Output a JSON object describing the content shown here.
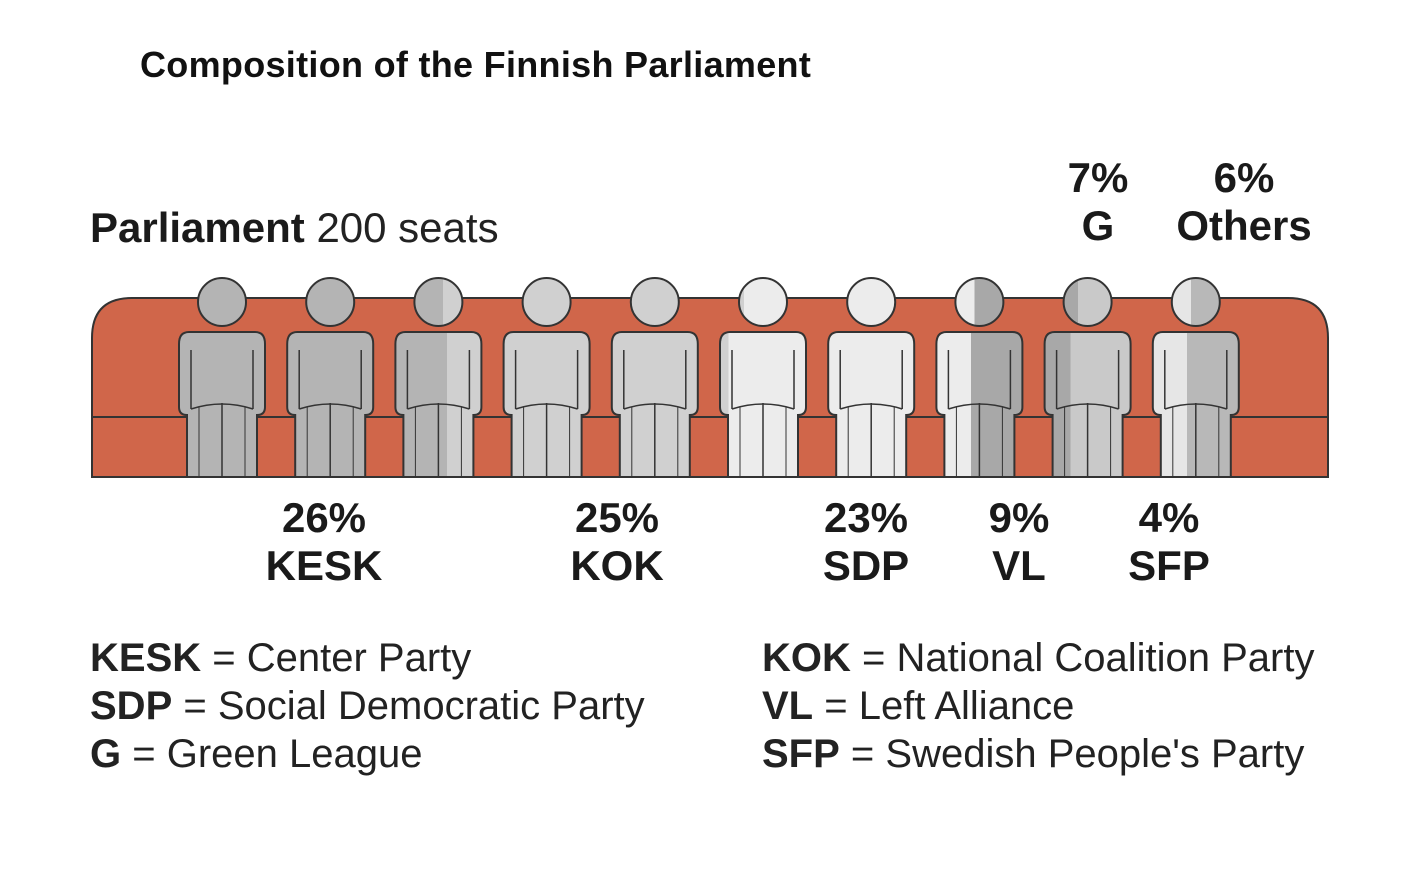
{
  "chart_data": {
    "type": "pictogram",
    "title": "Composition of the Finnish Parliament",
    "subtitle_bold": "Parliament",
    "subtitle_rest": "200 seats",
    "total_seats": 200,
    "parties": [
      {
        "abbr": "KESK",
        "percent": 26,
        "label": "26%",
        "full_name": "Center Party",
        "color": "#b4b4b4",
        "figures": 2.6
      },
      {
        "abbr": "KOK",
        "percent": 25,
        "label": "25%",
        "full_name": "National Coalition Party",
        "color": "#d0d0d0",
        "figures": 2.5
      },
      {
        "abbr": "SDP",
        "percent": 23,
        "label": "23%",
        "full_name": "Social Democratic Party",
        "color": "#ececec",
        "figures": 2.3
      },
      {
        "abbr": "VL",
        "percent": 9,
        "label": "9%",
        "full_name": "Left Alliance",
        "color": "#a8a8a8",
        "figures": 0.9
      },
      {
        "abbr": "G",
        "percent": 7,
        "label": "7%",
        "full_name": "Green League",
        "color": "#c9c9c9",
        "figures": 0.7
      },
      {
        "abbr": "SFP",
        "percent": 4,
        "label": "4%",
        "full_name": "Swedish People's Party",
        "color": "#e6e6e6",
        "figures": 0.4
      },
      {
        "abbr": "Others",
        "percent": 6,
        "label": "6%",
        "full_name": "",
        "color": "#b8b8b8",
        "figures": 0.6
      }
    ],
    "couch_color": "#d0664a",
    "outline_color": "#333333"
  },
  "legend": {
    "left": [
      {
        "abbr": "KESK",
        "text": "= Center Party"
      },
      {
        "abbr": "SDP",
        "text": "= Social Democratic Party"
      },
      {
        "abbr": "G",
        "text": "= Green League"
      }
    ],
    "right": [
      {
        "abbr": "KOK",
        "text": "= National Coalition Party"
      },
      {
        "abbr": "VL",
        "text": "= Left Alliance"
      },
      {
        "abbr": "SFP",
        "text": "= Swedish People's Party"
      }
    ]
  }
}
